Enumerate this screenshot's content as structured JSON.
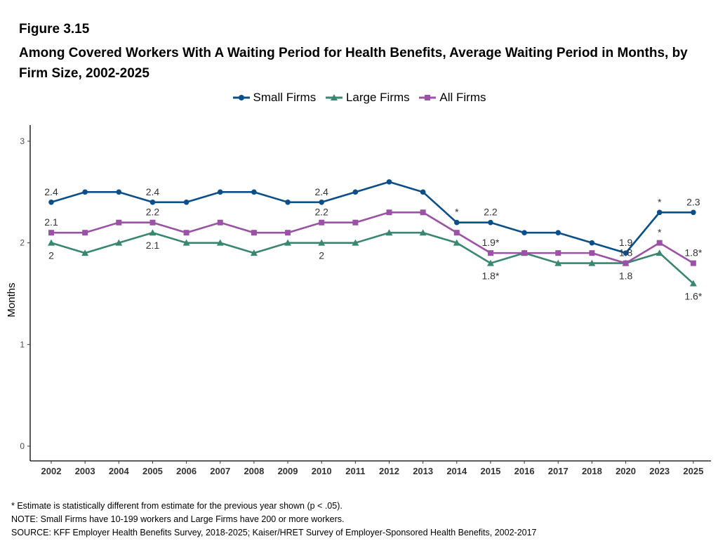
{
  "figure_label": "Figure 3.15",
  "title": "Among Covered Workers With A Waiting Period for Health Benefits, Average Waiting Period in Months, by Firm Size, 2002-2025",
  "colors": {
    "small": "#0b4f8a",
    "large": "#3a8771",
    "all": "#9b52a6"
  },
  "chart_data": {
    "type": "line",
    "title": "Among Covered Workers With A Waiting Period for Health Benefits, Average Waiting Period in Months, by Firm Size, 2002-2025",
    "xlabel": "",
    "ylabel": "Months",
    "ylim": [
      0,
      3
    ],
    "yticks": [
      0,
      1,
      2,
      3
    ],
    "grid": false,
    "legend_position": "top",
    "categories": [
      "2002",
      "2003",
      "2004",
      "2005",
      "2006",
      "2007",
      "2008",
      "2009",
      "2010",
      "2011",
      "2012",
      "2013",
      "2014",
      "2015",
      "2016",
      "2017",
      "2018",
      "2020",
      "2023",
      "2025"
    ],
    "series": [
      {
        "key": "small",
        "name": "Small Firms",
        "marker": "circle",
        "values": [
          2.4,
          2.5,
          2.5,
          2.4,
          2.4,
          2.5,
          2.5,
          2.4,
          2.4,
          2.5,
          2.6,
          2.5,
          2.2,
          2.2,
          2.1,
          2.1,
          2.0,
          1.9,
          2.3,
          2.3
        ]
      },
      {
        "key": "large",
        "name": "Large Firms",
        "marker": "triangle",
        "values": [
          2.0,
          1.9,
          2.0,
          2.1,
          2.0,
          2.0,
          1.9,
          2.0,
          2.0,
          2.0,
          2.1,
          2.1,
          2.0,
          1.8,
          1.9,
          1.8,
          1.8,
          1.8,
          1.9,
          1.6
        ]
      },
      {
        "key": "all",
        "name": "All Firms",
        "marker": "square",
        "values": [
          2.1,
          2.1,
          2.2,
          2.2,
          2.1,
          2.2,
          2.1,
          2.1,
          2.2,
          2.2,
          2.3,
          2.3,
          2.1,
          1.9,
          1.9,
          1.9,
          1.9,
          1.8,
          2.0,
          1.8
        ]
      }
    ],
    "annotations": [
      {
        "series": "small",
        "index": 0,
        "text": "2.4",
        "pos": "above"
      },
      {
        "series": "small",
        "index": 3,
        "text": "2.4",
        "pos": "above"
      },
      {
        "series": "small",
        "index": 8,
        "text": "2.4",
        "pos": "above"
      },
      {
        "series": "small",
        "index": 12,
        "text": "*",
        "pos": "above"
      },
      {
        "series": "small",
        "index": 13,
        "text": "2.2",
        "pos": "above"
      },
      {
        "series": "small",
        "index": 17,
        "text": "1.9",
        "pos": "above"
      },
      {
        "series": "small",
        "index": 18,
        "text": "*",
        "pos": "above"
      },
      {
        "series": "small",
        "index": 19,
        "text": "2.3",
        "pos": "above"
      },
      {
        "series": "all",
        "index": 0,
        "text": "2.1",
        "pos": "above"
      },
      {
        "series": "all",
        "index": 3,
        "text": "2.2",
        "pos": "above"
      },
      {
        "series": "all",
        "index": 8,
        "text": "2.2",
        "pos": "above"
      },
      {
        "series": "all",
        "index": 13,
        "text": "1.9*",
        "pos": "above"
      },
      {
        "series": "all",
        "index": 17,
        "text": "1.8",
        "pos": "above"
      },
      {
        "series": "all",
        "index": 18,
        "text": "*",
        "pos": "above"
      },
      {
        "series": "all",
        "index": 19,
        "text": "1.8*",
        "pos": "above"
      },
      {
        "series": "large",
        "index": 0,
        "text": "2",
        "pos": "below"
      },
      {
        "series": "large",
        "index": 3,
        "text": "2.1",
        "pos": "below"
      },
      {
        "series": "large",
        "index": 8,
        "text": "2",
        "pos": "below"
      },
      {
        "series": "large",
        "index": 13,
        "text": "1.8*",
        "pos": "below"
      },
      {
        "series": "large",
        "index": 17,
        "text": "1.8",
        "pos": "below"
      },
      {
        "series": "large",
        "index": 19,
        "text": "1.6*",
        "pos": "below"
      }
    ]
  },
  "notes": [
    "* Estimate is statistically different from estimate for the previous year shown (p < .05).",
    "NOTE: Small Firms have 10-199 workers and Large Firms have 200 or more workers.",
    "SOURCE: KFF Employer Health Benefits Survey, 2018-2025; Kaiser/HRET Survey of Employer-Sponsored Health Benefits, 2002-2017"
  ]
}
